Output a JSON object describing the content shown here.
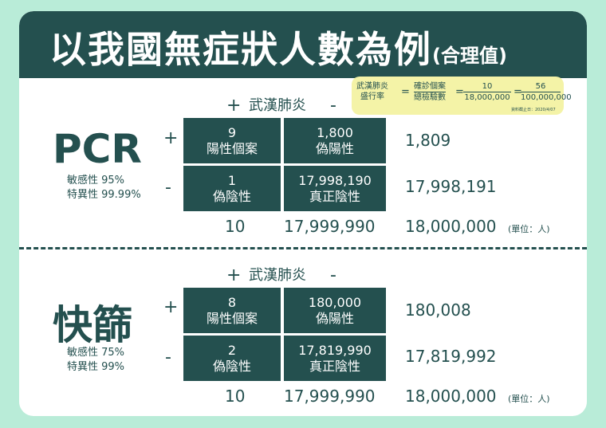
{
  "title": {
    "main": "以我國無症狀人數為例",
    "sub": "(合理值)"
  },
  "formula": {
    "lhs_top": "武漢肺炎",
    "lhs_bottom": "盛行率",
    "eq1": "=",
    "mid_top": "確診個案",
    "mid_bottom": "總檢驗數",
    "eq2": "=",
    "n1_top": "10",
    "n1_bottom": "18,000,000",
    "eq3": "=",
    "n2_top": "56",
    "n2_bottom": "100,000,000",
    "note": "資料截止日：2020/4/07"
  },
  "sections": [
    {
      "method": "PCR",
      "sensitivity": "敏感性 95%",
      "specificity": "特異性 99.99%",
      "plus": "+",
      "minus": "-",
      "col_plus": "+",
      "col_label": "武漢肺炎",
      "col_minus": "-",
      "cells": [
        {
          "value": "9",
          "label": "陽性個案"
        },
        {
          "value": "1,800",
          "label": "偽陽性"
        },
        {
          "value": "1",
          "label": "偽陰性"
        },
        {
          "value": "17,998,190",
          "label": "真正陰性"
        }
      ],
      "row_totals": [
        "1,809",
        "17,998,191"
      ],
      "col_totals": [
        "10",
        "17,999,990"
      ],
      "grand_total": "18,000,000",
      "unit": "(單位：人)"
    },
    {
      "method": "快篩",
      "sensitivity": "敏感性 75%",
      "specificity": "特異性 99%",
      "plus": "+",
      "minus": "-",
      "col_plus": "+",
      "col_label": "武漢肺炎",
      "col_minus": "-",
      "cells": [
        {
          "value": "8",
          "label": "陽性個案"
        },
        {
          "value": "180,000",
          "label": "偽陽性"
        },
        {
          "value": "2",
          "label": "偽陰性"
        },
        {
          "value": "17,819,990",
          "label": "真正陰性"
        }
      ],
      "row_totals": [
        "180,008",
        "17,819,992"
      ],
      "col_totals": [
        "10",
        "17,999,990"
      ],
      "grand_total": "18,000,000",
      "unit": "(單位：人)"
    }
  ]
}
